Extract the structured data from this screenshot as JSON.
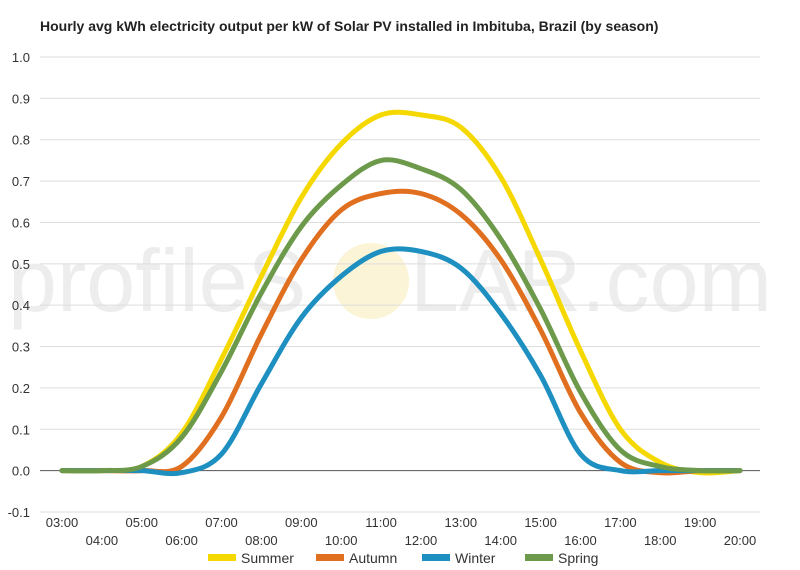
{
  "chart_data": {
    "type": "line",
    "title": "Hourly avg kWh electricity output per kW of Solar PV installed in Imbituba, Brazil (by season)",
    "xlabel": "",
    "ylabel": "",
    "ylim": [
      -0.1,
      1.0
    ],
    "yticks": [
      "1.0",
      "0.9",
      "0.8",
      "0.7",
      "0.6",
      "0.5",
      "0.4",
      "0.3",
      "0.2",
      "0.1",
      "0.0",
      "-0.1"
    ],
    "x": [
      "03:00",
      "04:00",
      "05:00",
      "06:00",
      "07:00",
      "08:00",
      "09:00",
      "10:00",
      "11:00",
      "12:00",
      "13:00",
      "14:00",
      "15:00",
      "16:00",
      "17:00",
      "18:00",
      "19:00",
      "20:00"
    ],
    "grid": true,
    "legend_position": "bottom",
    "series": [
      {
        "name": "Summer",
        "color": "#f5d800",
        "values": [
          0.0,
          0.0,
          0.01,
          0.09,
          0.27,
          0.47,
          0.66,
          0.79,
          0.86,
          0.86,
          0.83,
          0.71,
          0.51,
          0.29,
          0.1,
          0.02,
          -0.005,
          0.0
        ]
      },
      {
        "name": "Autumn",
        "color": "#e06f1f",
        "values": [
          0.0,
          0.0,
          0.0,
          0.01,
          0.13,
          0.33,
          0.51,
          0.63,
          0.67,
          0.67,
          0.62,
          0.51,
          0.34,
          0.14,
          0.02,
          -0.005,
          0.0,
          0.0
        ]
      },
      {
        "name": "Winter",
        "color": "#1d8fc0",
        "values": [
          0.0,
          0.0,
          0.0,
          -0.005,
          0.04,
          0.21,
          0.37,
          0.47,
          0.53,
          0.53,
          0.49,
          0.38,
          0.23,
          0.04,
          0.0,
          0.0,
          0.0,
          0.0
        ]
      },
      {
        "name": "Spring",
        "color": "#6c9a4a",
        "values": [
          0.0,
          0.0,
          0.01,
          0.08,
          0.24,
          0.43,
          0.59,
          0.69,
          0.75,
          0.73,
          0.68,
          0.56,
          0.39,
          0.19,
          0.05,
          0.01,
          0.0,
          0.0
        ]
      }
    ]
  },
  "watermark": {
    "left": "profileS",
    "right": "LAR.com"
  }
}
